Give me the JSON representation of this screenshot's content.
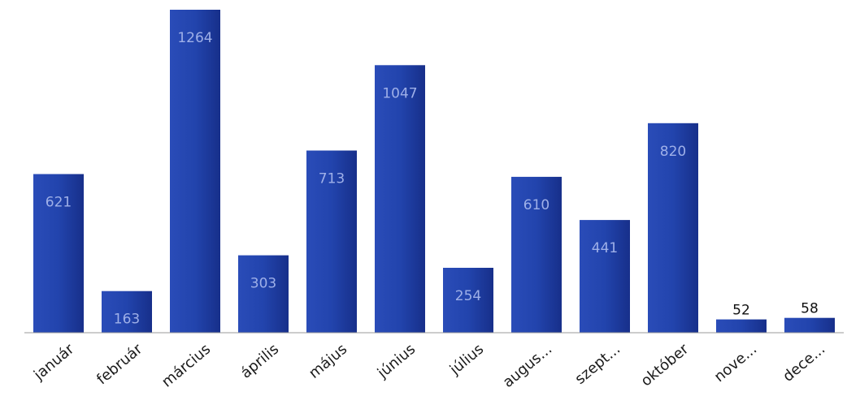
{
  "chart_data": {
    "type": "bar",
    "categories": [
      "január",
      "február",
      "március",
      "április",
      "május",
      "június",
      "július",
      "augus...",
      "szept...",
      "október",
      "nove...",
      "dece..."
    ],
    "values": [
      621,
      163,
      1264,
      303,
      713,
      1047,
      254,
      610,
      441,
      820,
      52,
      58
    ],
    "data_labels": [
      "621",
      "163",
      "1264",
      "303",
      "713",
      "1047",
      "254",
      "610",
      "441",
      "820",
      "52",
      "58"
    ],
    "title": "",
    "xlabel": "",
    "ylabel": "",
    "ylim": [
      0,
      1264
    ],
    "grid": false,
    "legend": "none",
    "colors": {
      "bar": "#1f3fa6",
      "bar_dark": "#152f86",
      "label_inside": "#9fb0e8",
      "label_outside": "#111111",
      "axis": "#9a9a9a"
    }
  }
}
